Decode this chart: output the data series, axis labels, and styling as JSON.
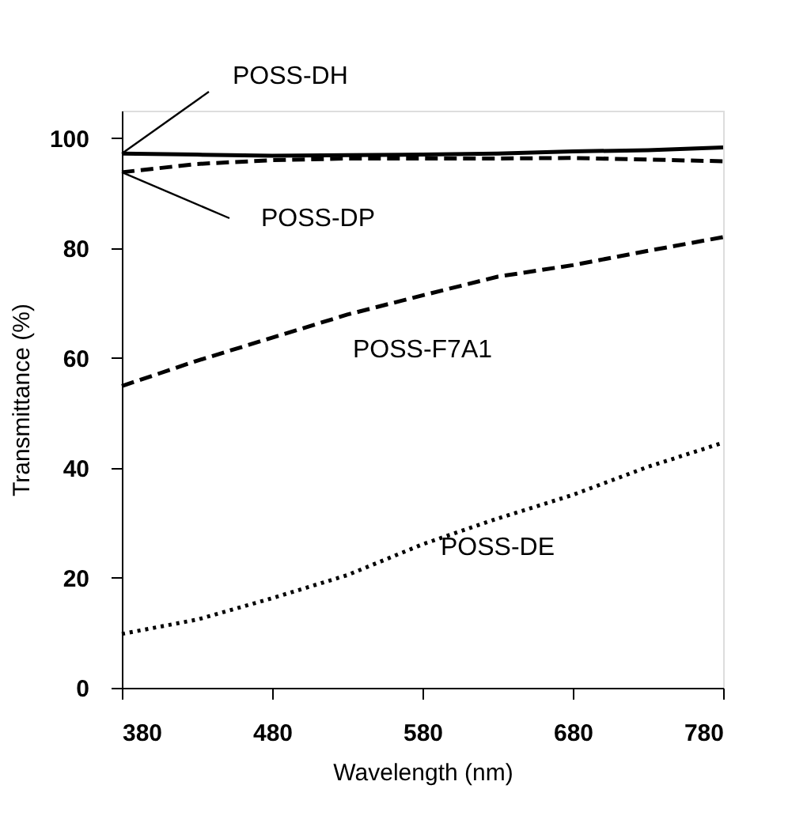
{
  "chart_data": {
    "type": "line",
    "xlabel": "Wavelength (nm)",
    "ylabel": "Transmittance (%)",
    "xlim": [
      380,
      780
    ],
    "xticks": [
      380,
      480,
      580,
      680,
      780
    ],
    "ylim": [
      0,
      105
    ],
    "yticks": [
      0,
      20,
      40,
      60,
      80,
      100
    ],
    "grid": false,
    "marker": "none",
    "x": [
      380,
      430,
      480,
      530,
      580,
      630,
      680,
      730,
      780
    ],
    "series": [
      {
        "name": "POSS-DH",
        "color": "#000000",
        "line_style": "solid",
        "values": [
          97.2,
          97.0,
          96.8,
          96.9,
          97.0,
          97.2,
          97.6,
          97.8,
          98.3
        ]
      },
      {
        "name": "POSS-DP",
        "color": "#000000",
        "line_style": "dashed",
        "values": [
          93.8,
          95.3,
          96.0,
          96.3,
          96.3,
          96.3,
          96.4,
          96.1,
          95.8
        ]
      },
      {
        "name": "POSS-F7A1",
        "color": "#000000",
        "line_style": "dashed",
        "values": [
          54.9,
          59.5,
          63.7,
          67.9,
          71.4,
          74.8,
          76.9,
          79.5,
          82.0
        ]
      },
      {
        "name": "POSS-DE",
        "color": "#000000",
        "line_style": "dotted",
        "values": [
          9.8,
          12.4,
          16.3,
          20.5,
          26.1,
          30.8,
          35.1,
          40.2,
          44.6
        ]
      }
    ]
  }
}
